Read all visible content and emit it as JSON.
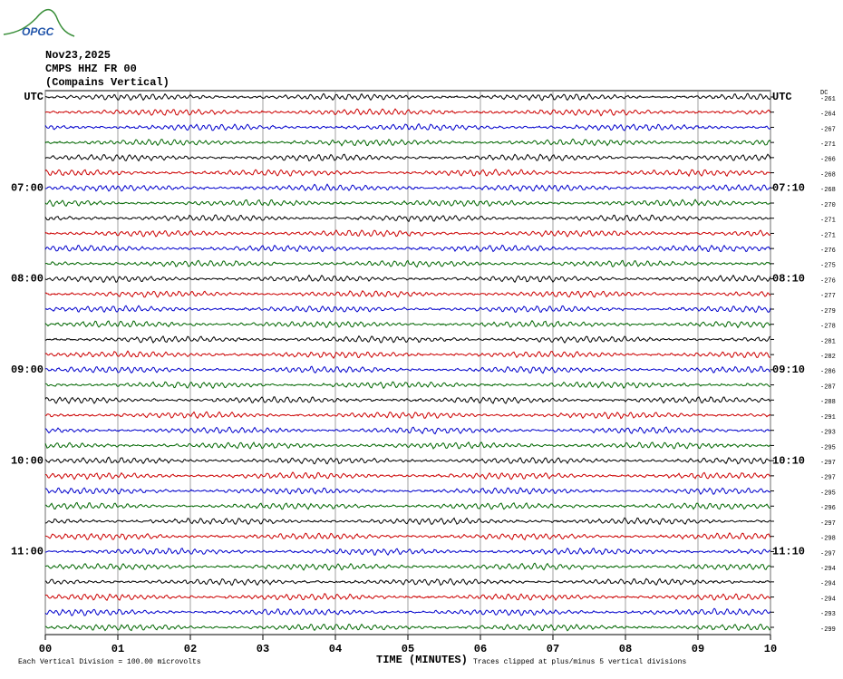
{
  "header": {
    "logo": "OPGC",
    "date": "Nov23,2025",
    "station": "CMPS HHZ FR 00",
    "location": "(Compains Vertical)",
    "dc_label": "DC"
  },
  "trace_colors": [
    "#000000",
    "#cc0000",
    "#0000cc",
    "#006600"
  ],
  "rows": [
    {
      "dc": -261,
      "left": "UTC",
      "right": "UTC"
    },
    {
      "dc": -264
    },
    {
      "dc": -267
    },
    {
      "dc": -271
    },
    {
      "dc": -266
    },
    {
      "dc": -268
    },
    {
      "dc": -268,
      "left": "07:00",
      "right": "07:10"
    },
    {
      "dc": -270
    },
    {
      "dc": -271
    },
    {
      "dc": -271
    },
    {
      "dc": -276
    },
    {
      "dc": -275
    },
    {
      "dc": -276,
      "left": "08:00",
      "right": "08:10"
    },
    {
      "dc": -277
    },
    {
      "dc": -279
    },
    {
      "dc": -278
    },
    {
      "dc": -281
    },
    {
      "dc": -282
    },
    {
      "dc": -286,
      "left": "09:00",
      "right": "09:10"
    },
    {
      "dc": -287
    },
    {
      "dc": -288
    },
    {
      "dc": -291
    },
    {
      "dc": -293
    },
    {
      "dc": -295
    },
    {
      "dc": -297,
      "left": "10:00",
      "right": "10:10"
    },
    {
      "dc": -297
    },
    {
      "dc": -295
    },
    {
      "dc": -296
    },
    {
      "dc": -297
    },
    {
      "dc": -298
    },
    {
      "dc": -297,
      "left": "11:00",
      "right": "11:10"
    },
    {
      "dc": -294
    },
    {
      "dc": -294
    },
    {
      "dc": -294
    },
    {
      "dc": -293
    },
    {
      "dc": -299
    }
  ],
  "x_axis": {
    "label": "TIME (MINUTES)",
    "xlim": [
      0,
      10
    ],
    "xticks": [
      {
        "value": 0,
        "label": "00"
      },
      {
        "value": 1,
        "label": "01"
      },
      {
        "value": 2,
        "label": "02"
      },
      {
        "value": 3,
        "label": "03"
      },
      {
        "value": 4,
        "label": "04"
      },
      {
        "value": 5,
        "label": "05"
      },
      {
        "value": 6,
        "label": "06"
      },
      {
        "value": 7,
        "label": "07"
      },
      {
        "value": 8,
        "label": "08"
      },
      {
        "value": 9,
        "label": "09"
      },
      {
        "value": 10,
        "label": "10"
      }
    ]
  },
  "footer": {
    "scale_note": "Each Vertical Division =  100.00 microvolts",
    "clip_note": "Traces clipped at plus/minus 5 vertical divisions"
  }
}
